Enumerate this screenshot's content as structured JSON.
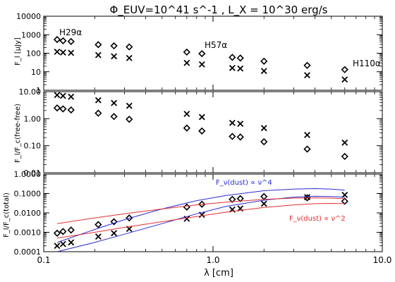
{
  "figure": {
    "title": "Φ_EUV=10^41 s^-1 , L_X = 10^30 erg/s",
    "xlabel": "λ [cm]"
  },
  "panels_text": {
    "top": {
      "ylabel": "F_l [μJy]"
    },
    "middle": {
      "ylabel": "F_l/F_c(free-free)"
    },
    "bottom": {
      "ylabel": "F_l/F_c(total)"
    }
  },
  "annotations": {
    "h29": "H29α",
    "h57": "H57α",
    "h110": "H110α",
    "nu4": "F_ν(dust) ∝ ν^4",
    "nu2": "F_ν(dust) ∝ ν^2"
  },
  "colors": {
    "axis": "#000000",
    "nu4_curve": "#2b2bd6",
    "nu2_curve": "#e03030"
  },
  "chart_data": [
    {
      "type": "scatter",
      "panel": "top",
      "x_scale": "log",
      "y_scale": "log",
      "xlim": [
        0.1,
        10.0
      ],
      "ylim": [
        1,
        10000
      ],
      "ylabel": "F_l [μJy]",
      "ytick_labels": [
        "1",
        "10",
        "100",
        "1000",
        "10000"
      ],
      "series": [
        {
          "marker": "diamond",
          "x": [
            0.12,
            0.13,
            0.145,
            0.21,
            0.26,
            0.32,
            0.7,
            0.86,
            1.3,
            1.45,
            2.0,
            3.6,
            6.0
          ],
          "y": [
            550,
            470,
            430,
            290,
            250,
            220,
            115,
            95,
            60,
            55,
            37,
            22,
            13
          ]
        },
        {
          "marker": "cross",
          "x": [
            0.12,
            0.13,
            0.145,
            0.21,
            0.26,
            0.32,
            0.7,
            0.86,
            1.3,
            1.45,
            2.0,
            3.6,
            6.0
          ],
          "y": [
            120,
            110,
            105,
            80,
            68,
            55,
            30,
            25,
            16,
            15,
            11,
            6.5,
            3.8
          ]
        }
      ]
    },
    {
      "type": "scatter",
      "panel": "middle",
      "x_scale": "log",
      "y_scale": "log",
      "xlim": [
        0.1,
        10.0
      ],
      "ylim": [
        0.01,
        10.0
      ],
      "ylabel": "F_l/F_c(free-free)",
      "ytick_labels": [
        "0.01",
        "0.10",
        "1.00",
        "10.00"
      ],
      "series": [
        {
          "marker": "diamond",
          "x": [
            0.12,
            0.13,
            0.145,
            0.21,
            0.26,
            0.32,
            0.7,
            0.86,
            1.3,
            1.45,
            2.0,
            3.6,
            6.0
          ],
          "y": [
            2.5,
            2.3,
            2.1,
            1.6,
            1.2,
            0.95,
            0.45,
            0.35,
            0.22,
            0.21,
            0.14,
            0.075,
            0.04
          ]
        },
        {
          "marker": "cross",
          "x": [
            0.12,
            0.13,
            0.145,
            0.21,
            0.26,
            0.32,
            0.7,
            0.86,
            1.3,
            1.45,
            2.0,
            3.6,
            6.0
          ],
          "y": [
            7.5,
            7.0,
            6.5,
            4.8,
            3.8,
            3.0,
            1.5,
            1.15,
            0.7,
            0.65,
            0.45,
            0.25,
            0.13
          ]
        }
      ]
    },
    {
      "type": "line",
      "panel": "bottom",
      "x_scale": "log",
      "y_scale": "log",
      "xlim": [
        0.1,
        10.0
      ],
      "ylim": [
        0.0001,
        1.0
      ],
      "ylabel": "F_l/F_c(total)",
      "ytick_labels": [
        "0.0001",
        "0.0010",
        "0.0100",
        "0.1000",
        "1.0000"
      ],
      "xtick_labels": [
        "0.1",
        "1.0",
        "10.0"
      ],
      "series": [
        {
          "marker": "diamond",
          "x": [
            0.12,
            0.13,
            0.145,
            0.21,
            0.26,
            0.32,
            0.7,
            0.86,
            1.3,
            1.45,
            2.0,
            3.6,
            6.0
          ],
          "y": [
            0.0009,
            0.0011,
            0.0013,
            0.0025,
            0.0035,
            0.0055,
            0.02,
            0.028,
            0.05,
            0.055,
            0.07,
            0.06,
            0.04
          ]
        },
        {
          "marker": "cross",
          "x": [
            0.12,
            0.13,
            0.145,
            0.21,
            0.26,
            0.32,
            0.7,
            0.86,
            1.3,
            1.45,
            2.0,
            3.6,
            6.0
          ],
          "y": [
            0.0002,
            0.00025,
            0.0003,
            0.0006,
            0.0009,
            0.0015,
            0.005,
            0.008,
            0.015,
            0.017,
            0.03,
            0.065,
            0.085
          ]
        },
        {
          "line": "blue-upper",
          "color": "#2b2bd6",
          "x": [
            0.12,
            0.2,
            0.3,
            0.5,
            0.8,
            1.2,
            2.0,
            3.0,
            4.0,
            5.0,
            6.0
          ],
          "y": [
            0.0003,
            0.0014,
            0.0045,
            0.016,
            0.043,
            0.08,
            0.14,
            0.17,
            0.18,
            0.17,
            0.15
          ]
        },
        {
          "line": "blue-lower",
          "color": "#2b2bd6",
          "x": [
            0.12,
            0.2,
            0.3,
            0.5,
            0.8,
            1.2,
            2.0,
            3.0,
            4.0,
            5.0,
            6.0
          ],
          "y": [
            0.0001,
            0.0003,
            0.0008,
            0.0028,
            0.009,
            0.022,
            0.045,
            0.065,
            0.072,
            0.07,
            0.065
          ]
        },
        {
          "line": "red-upper",
          "color": "#e03030",
          "x": [
            0.12,
            0.2,
            0.3,
            0.5,
            0.8,
            1.2,
            2.0,
            3.0,
            4.0,
            5.0,
            6.0
          ],
          "y": [
            0.0028,
            0.0055,
            0.009,
            0.016,
            0.026,
            0.036,
            0.05,
            0.058,
            0.06,
            0.058,
            0.054
          ]
        },
        {
          "line": "red-lower",
          "color": "#e03030",
          "x": [
            0.12,
            0.2,
            0.3,
            0.5,
            0.8,
            1.2,
            2.0,
            3.0,
            4.0,
            5.0,
            6.0
          ],
          "y": [
            0.0005,
            0.001,
            0.0018,
            0.0035,
            0.0065,
            0.011,
            0.019,
            0.026,
            0.03,
            0.031,
            0.03
          ]
        }
      ]
    }
  ]
}
